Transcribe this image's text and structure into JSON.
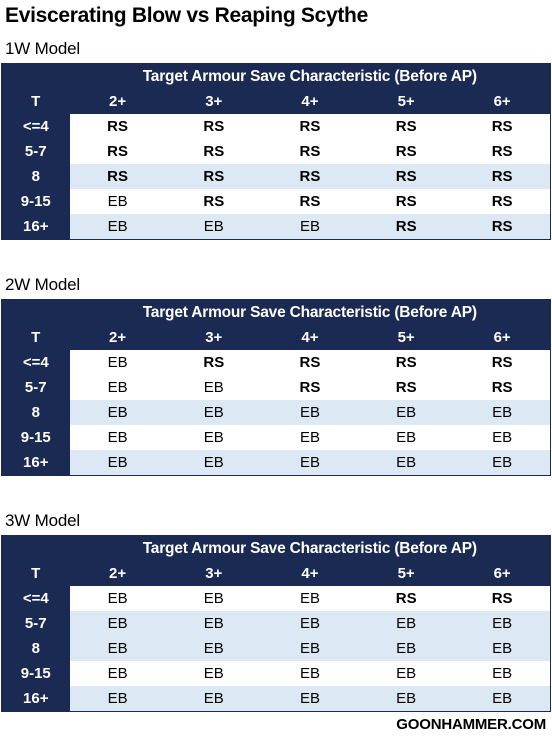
{
  "title": "Eviscerating Blow vs Reaping Scythe",
  "footer": "GOONHAMMER.COM",
  "tables": [
    {
      "label": "1W Model",
      "header": "Target Armour Save Characteristic (Before AP)",
      "t_label": "T",
      "columns": [
        "2+",
        "3+",
        "4+",
        "5+",
        "6+"
      ],
      "rows": [
        {
          "t": "<=4",
          "cells": [
            "RS",
            "RS",
            "RS",
            "RS",
            "RS"
          ]
        },
        {
          "t": "5-7",
          "cells": [
            "RS",
            "RS",
            "RS",
            "RS",
            "RS"
          ]
        },
        {
          "t": "8",
          "cells": [
            "RS",
            "RS",
            "RS",
            "RS",
            "RS"
          ]
        },
        {
          "t": "9-15",
          "cells": [
            "EB",
            "RS",
            "RS",
            "RS",
            "RS"
          ]
        },
        {
          "t": "16+",
          "cells": [
            "EB",
            "EB",
            "EB",
            "RS",
            "RS"
          ]
        }
      ]
    },
    {
      "label": "2W Model",
      "header": "Target Armour Save Characteristic (Before AP)",
      "t_label": "T",
      "columns": [
        "2+",
        "3+",
        "4+",
        "5+",
        "6+"
      ],
      "rows": [
        {
          "t": "<=4",
          "cells": [
            "EB",
            "RS",
            "RS",
            "RS",
            "RS"
          ]
        },
        {
          "t": "5-7",
          "cells": [
            "EB",
            "EB",
            "RS",
            "RS",
            "RS"
          ]
        },
        {
          "t": "8",
          "cells": [
            "EB",
            "EB",
            "EB",
            "EB",
            "EB"
          ]
        },
        {
          "t": "9-15",
          "cells": [
            "EB",
            "EB",
            "EB",
            "EB",
            "EB"
          ]
        },
        {
          "t": "16+",
          "cells": [
            "EB",
            "EB",
            "EB",
            "EB",
            "EB"
          ]
        }
      ]
    },
    {
      "label": "3W Model",
      "header": "Target Armour Save Characteristic (Before AP)",
      "t_label": "T",
      "columns": [
        "2+",
        "3+",
        "4+",
        "5+",
        "6+"
      ],
      "rows": [
        {
          "t": "<=4",
          "cells": [
            "EB",
            "EB",
            "EB",
            "RS",
            "RS"
          ]
        },
        {
          "t": "5-7",
          "cells": [
            "EB",
            "EB",
            "EB",
            "EB",
            "EB"
          ]
        },
        {
          "t": "8",
          "cells": [
            "EB",
            "EB",
            "EB",
            "EB",
            "EB"
          ]
        },
        {
          "t": "9-15",
          "cells": [
            "EB",
            "EB",
            "EB",
            "EB",
            "EB"
          ]
        },
        {
          "t": "16+",
          "cells": [
            "EB",
            "EB",
            "EB",
            "EB",
            "EB"
          ]
        }
      ]
    }
  ]
}
